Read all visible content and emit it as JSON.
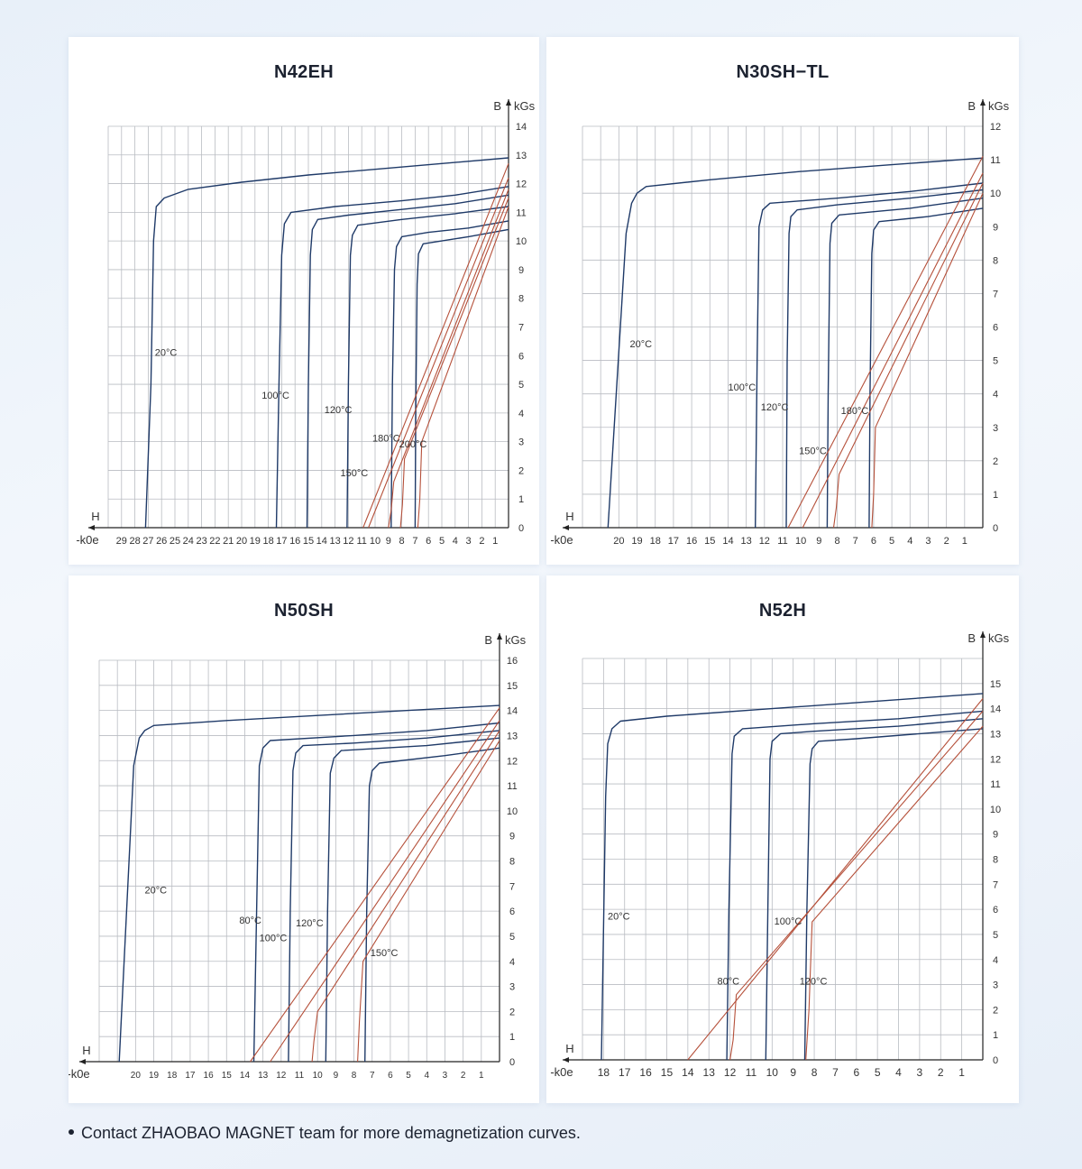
{
  "footnote": "Contact ZHAOBAO MAGNET team for more demagnetization curves.",
  "colors": {
    "bcurve": "#1f3a68",
    "jcurve": "#b5503a",
    "grid": "#b9bcc2",
    "text": "#333333"
  },
  "chart_data": [
    {
      "type": "line",
      "title": "N42EH",
      "xlabel": "H",
      "xunit": "-k0e",
      "ylabel": "B",
      "yunit": "kGs",
      "xlim": [
        30,
        0
      ],
      "ylim": [
        0,
        14
      ],
      "xticks": [
        29,
        28,
        27,
        26,
        25,
        24,
        23,
        22,
        21,
        20,
        19,
        18,
        17,
        16,
        15,
        14,
        13,
        12,
        11,
        10,
        9,
        8,
        7,
        6,
        5,
        4,
        3,
        2,
        1
      ],
      "yticks": [
        0,
        1,
        2,
        3,
        4,
        5,
        6,
        7,
        8,
        9,
        10,
        11,
        12,
        13,
        14
      ],
      "grid": true,
      "series": [
        {
          "name": "20°C",
          "kind": "intrinsic",
          "label": "20°C",
          "x": [
            0,
            5,
            10,
            15,
            20,
            24,
            25.8,
            26.4,
            26.6,
            26.8,
            27.2
          ],
          "y": [
            12.9,
            12.7,
            12.5,
            12.3,
            12.05,
            11.8,
            11.5,
            11.2,
            10,
            5,
            0
          ]
        },
        {
          "name": "100°C",
          "kind": "intrinsic",
          "label": "100°C",
          "x": [
            0,
            4,
            8,
            13,
            16.3,
            16.8,
            17.0,
            17.2,
            17.4
          ],
          "y": [
            11.9,
            11.6,
            11.4,
            11.2,
            11.0,
            10.6,
            9.5,
            5,
            0
          ]
        },
        {
          "name": "120°C",
          "kind": "intrinsic",
          "label": "120°C",
          "x": [
            0,
            4,
            8,
            12,
            14.3,
            14.7,
            14.85,
            15.0,
            15.1
          ],
          "y": [
            11.6,
            11.3,
            11.1,
            10.9,
            10.75,
            10.4,
            9.5,
            5,
            0
          ]
        },
        {
          "name": "150°C",
          "kind": "intrinsic",
          "label": "150°C",
          "x": [
            0,
            4,
            8,
            11.3,
            11.7,
            11.85,
            12.0,
            12.1
          ],
          "y": [
            11.2,
            10.95,
            10.75,
            10.55,
            10.2,
            9.5,
            5,
            0
          ]
        },
        {
          "name": "180°C",
          "kind": "intrinsic",
          "label": "180°C",
          "x": [
            0,
            3,
            6,
            8.0,
            8.4,
            8.55,
            8.7,
            8.8
          ],
          "y": [
            10.7,
            10.45,
            10.3,
            10.15,
            9.8,
            9.0,
            5,
            0
          ]
        },
        {
          "name": "200°C",
          "kind": "intrinsic",
          "label": "200°C",
          "x": [
            0,
            3,
            5,
            6.4,
            6.75,
            6.85,
            6.95,
            7.0
          ],
          "y": [
            10.4,
            10.15,
            10.0,
            9.9,
            9.55,
            8.5,
            4,
            0
          ]
        },
        {
          "name": "100°C",
          "kind": "normal",
          "x": [
            0,
            10.9
          ],
          "y": [
            12.7,
            0
          ]
        },
        {
          "name": "120°C",
          "kind": "normal",
          "x": [
            0,
            10.5
          ],
          "y": [
            12.2,
            0
          ]
        },
        {
          "name": "150°C",
          "kind": "normal",
          "x": [
            0,
            8.6,
            8.8,
            9.0
          ],
          "y": [
            11.8,
            1.6,
            0.6,
            0
          ]
        },
        {
          "name": "180°C",
          "kind": "normal",
          "x": [
            0,
            7.8,
            7.95,
            8.1
          ],
          "y": [
            11.5,
            2.4,
            0.8,
            0
          ]
        },
        {
          "name": "200°C",
          "kind": "normal",
          "x": [
            0,
            6.5,
            6.65,
            6.8
          ],
          "y": [
            11.2,
            3.0,
            1.0,
            0
          ]
        }
      ],
      "label_pos": [
        [
          26.5,
          6.0
        ],
        [
          18.5,
          4.5
        ],
        [
          13.8,
          4.0
        ],
        [
          12.6,
          1.8
        ],
        [
          10.2,
          3.0
        ],
        [
          8.2,
          2.8
        ]
      ]
    },
    {
      "type": "line",
      "title": "N30SH−TL",
      "xlabel": "H",
      "xunit": "-k0e",
      "ylabel": "B",
      "yunit": "kGs",
      "xlim": [
        22,
        0
      ],
      "ylim": [
        0,
        12
      ],
      "xticks": [
        20,
        19,
        18,
        17,
        16,
        15,
        14,
        13,
        12,
        11,
        10,
        9,
        8,
        7,
        6,
        5,
        4,
        3,
        2,
        1
      ],
      "yticks": [
        0,
        1,
        2,
        3,
        4,
        5,
        6,
        7,
        8,
        9,
        10,
        11,
        12
      ],
      "grid": true,
      "series": [
        {
          "name": "20°C",
          "kind": "intrinsic",
          "label": "20°C",
          "x": [
            0,
            5,
            10,
            15,
            18.5,
            19.0,
            19.3,
            19.6,
            20.6
          ],
          "y": [
            11.05,
            10.85,
            10.65,
            10.4,
            10.2,
            10.0,
            9.7,
            8.8,
            0
          ]
        },
        {
          "name": "100°C",
          "kind": "intrinsic",
          "label": "100°C",
          "x": [
            0,
            4,
            8,
            11.7,
            12.1,
            12.3,
            12.4,
            12.5
          ],
          "y": [
            10.3,
            10.05,
            9.85,
            9.7,
            9.5,
            9.0,
            5,
            0
          ]
        },
        {
          "name": "120°C",
          "kind": "intrinsic",
          "label": "120°C",
          "x": [
            0,
            4,
            8,
            10.2,
            10.55,
            10.65,
            10.75,
            10.8
          ],
          "y": [
            10.1,
            9.85,
            9.65,
            9.5,
            9.3,
            8.8,
            5,
            0
          ]
        },
        {
          "name": "150°C",
          "kind": "intrinsic",
          "label": "150°C",
          "x": [
            0,
            4,
            7.9,
            8.3,
            8.4,
            8.5,
            8.55
          ],
          "y": [
            9.85,
            9.55,
            9.35,
            9.1,
            8.5,
            4,
            0
          ]
        },
        {
          "name": "180°C",
          "kind": "intrinsic",
          "label": "180°C",
          "x": [
            0,
            3,
            5.7,
            6.0,
            6.1,
            6.2,
            6.25
          ],
          "y": [
            9.55,
            9.3,
            9.15,
            8.9,
            8.2,
            4,
            0
          ]
        },
        {
          "name": "100°C",
          "kind": "normal",
          "x": [
            0,
            10.7
          ],
          "y": [
            11.1,
            0
          ]
        },
        {
          "name": "120°C",
          "kind": "normal",
          "x": [
            0,
            9.9
          ],
          "y": [
            10.6,
            0
          ]
        },
        {
          "name": "150°C",
          "kind": "normal",
          "x": [
            0,
            7.9,
            8.05,
            8.2
          ],
          "y": [
            10.3,
            1.6,
            0.6,
            0
          ]
        },
        {
          "name": "180°C",
          "kind": "normal",
          "x": [
            0,
            5.9,
            6.0,
            6.1
          ],
          "y": [
            10.0,
            3.0,
            1.0,
            0
          ]
        }
      ],
      "label_pos": [
        [
          19.4,
          5.4
        ],
        [
          14.0,
          4.1
        ],
        [
          12.2,
          3.5
        ],
        [
          10.1,
          2.2
        ],
        [
          7.8,
          3.4
        ]
      ]
    },
    {
      "type": "line",
      "title": "N50SH",
      "xlabel": "H",
      "xunit": "-k0e",
      "ylabel": "B",
      "yunit": "kGs",
      "xlim": [
        22,
        0
      ],
      "ylim": [
        0,
        16
      ],
      "xticks": [
        20,
        19,
        18,
        17,
        16,
        15,
        14,
        13,
        12,
        11,
        10,
        9,
        8,
        7,
        6,
        5,
        4,
        3,
        2,
        1
      ],
      "yticks": [
        0,
        1,
        2,
        3,
        4,
        5,
        6,
        7,
        8,
        9,
        10,
        11,
        12,
        13,
        14,
        15,
        16
      ],
      "grid": true,
      "series": [
        {
          "name": "20°C",
          "kind": "intrinsic",
          "label": "20°C",
          "x": [
            0,
            5,
            10,
            15,
            19.0,
            19.5,
            19.8,
            20.1,
            20.9
          ],
          "y": [
            14.2,
            14.0,
            13.8,
            13.6,
            13.4,
            13.2,
            12.9,
            11.8,
            0
          ]
        },
        {
          "name": "80°C",
          "kind": "intrinsic",
          "label": "80°C",
          "x": [
            0,
            4,
            8,
            12.6,
            13.0,
            13.2,
            13.35,
            13.5
          ],
          "y": [
            13.5,
            13.2,
            13.0,
            12.8,
            12.5,
            11.8,
            6,
            0
          ]
        },
        {
          "name": "100°C",
          "kind": "intrinsic",
          "label": "100°C",
          "x": [
            0,
            4,
            8,
            10.8,
            11.2,
            11.35,
            11.5,
            11.6
          ],
          "y": [
            13.2,
            12.9,
            12.7,
            12.6,
            12.3,
            11.6,
            6,
            0
          ]
        },
        {
          "name": "120°C",
          "kind": "intrinsic",
          "label": "120°C",
          "x": [
            0,
            4,
            8.7,
            9.1,
            9.3,
            9.45,
            9.55
          ],
          "y": [
            12.9,
            12.6,
            12.4,
            12.1,
            11.5,
            6,
            0
          ]
        },
        {
          "name": "150°C",
          "kind": "intrinsic",
          "label": "150°C",
          "x": [
            0,
            3,
            6.6,
            7.0,
            7.15,
            7.3,
            7.4
          ],
          "y": [
            12.5,
            12.2,
            11.9,
            11.6,
            11.0,
            6,
            0
          ]
        },
        {
          "name": "80°C",
          "kind": "normal",
          "x": [
            0,
            13.7
          ],
          "y": [
            14.1,
            0
          ]
        },
        {
          "name": "100°C",
          "kind": "normal",
          "x": [
            0,
            12.6
          ],
          "y": [
            13.6,
            0
          ]
        },
        {
          "name": "120°C",
          "kind": "normal",
          "x": [
            0,
            10.0,
            10.2,
            10.3
          ],
          "y": [
            13.2,
            2.0,
            0.8,
            0
          ]
        },
        {
          "name": "150°C",
          "kind": "normal",
          "x": [
            0,
            7.5,
            7.7,
            7.8
          ],
          "y": [
            12.8,
            4.0,
            1.6,
            0
          ]
        }
      ],
      "label_pos": [
        [
          19.5,
          6.7
        ],
        [
          14.3,
          5.5
        ],
        [
          13.2,
          4.8
        ],
        [
          11.2,
          5.4
        ],
        [
          7.1,
          4.2
        ]
      ]
    },
    {
      "type": "line",
      "title": "N52H",
      "xlabel": "H",
      "xunit": "-k0e",
      "ylabel": "B",
      "yunit": "kGs",
      "xlim": [
        19,
        0
      ],
      "ylim": [
        0,
        16
      ],
      "xticks": [
        18,
        17,
        16,
        15,
        14,
        13,
        12,
        11,
        10,
        9,
        8,
        7,
        6,
        5,
        4,
        3,
        2,
        1
      ],
      "yticks": [
        0,
        1,
        2,
        3,
        4,
        5,
        6,
        7,
        8,
        9,
        10,
        11,
        12,
        13,
        14,
        15
      ],
      "grid": true,
      "series": [
        {
          "name": "20°C",
          "kind": "intrinsic",
          "label": "20°C",
          "x": [
            0,
            5,
            10,
            15,
            17.2,
            17.6,
            17.8,
            17.9,
            18.1
          ],
          "y": [
            14.6,
            14.3,
            14.0,
            13.7,
            13.5,
            13.2,
            12.6,
            10.5,
            0
          ]
        },
        {
          "name": "80°C",
          "kind": "intrinsic",
          "label": "80°C",
          "x": [
            0,
            4,
            8,
            11.4,
            11.8,
            11.9,
            12.05,
            12.15
          ],
          "y": [
            13.9,
            13.6,
            13.4,
            13.2,
            12.9,
            12.2,
            6,
            0
          ]
        },
        {
          "name": "100°C",
          "kind": "intrinsic",
          "label": "100°C",
          "x": [
            0,
            4,
            8,
            9.6,
            10.0,
            10.1,
            10.2,
            10.3
          ],
          "y": [
            13.6,
            13.3,
            13.1,
            13.0,
            12.7,
            12.0,
            6,
            0
          ]
        },
        {
          "name": "120°C",
          "kind": "intrinsic",
          "label": "120°C",
          "x": [
            0,
            3,
            6,
            7.8,
            8.1,
            8.2,
            8.35,
            8.45
          ],
          "y": [
            13.2,
            13.0,
            12.8,
            12.7,
            12.4,
            11.8,
            6,
            0
          ]
        },
        {
          "name": "80°C",
          "kind": "normal",
          "x": [
            0,
            14.0
          ],
          "y": [
            14.4,
            0
          ]
        },
        {
          "name": "100°C",
          "kind": "normal",
          "x": [
            0,
            11.7,
            11.85,
            12.0
          ],
          "y": [
            13.9,
            2.6,
            0.8,
            0
          ]
        },
        {
          "name": "120°C",
          "kind": "normal",
          "x": [
            0,
            8.1,
            8.25,
            8.4
          ],
          "y": [
            13.3,
            5.5,
            2.0,
            0
          ]
        }
      ],
      "label_pos": [
        [
          17.8,
          5.6
        ],
        [
          12.6,
          3.0
        ],
        [
          9.9,
          5.4
        ],
        [
          8.7,
          3.0
        ]
      ]
    }
  ]
}
